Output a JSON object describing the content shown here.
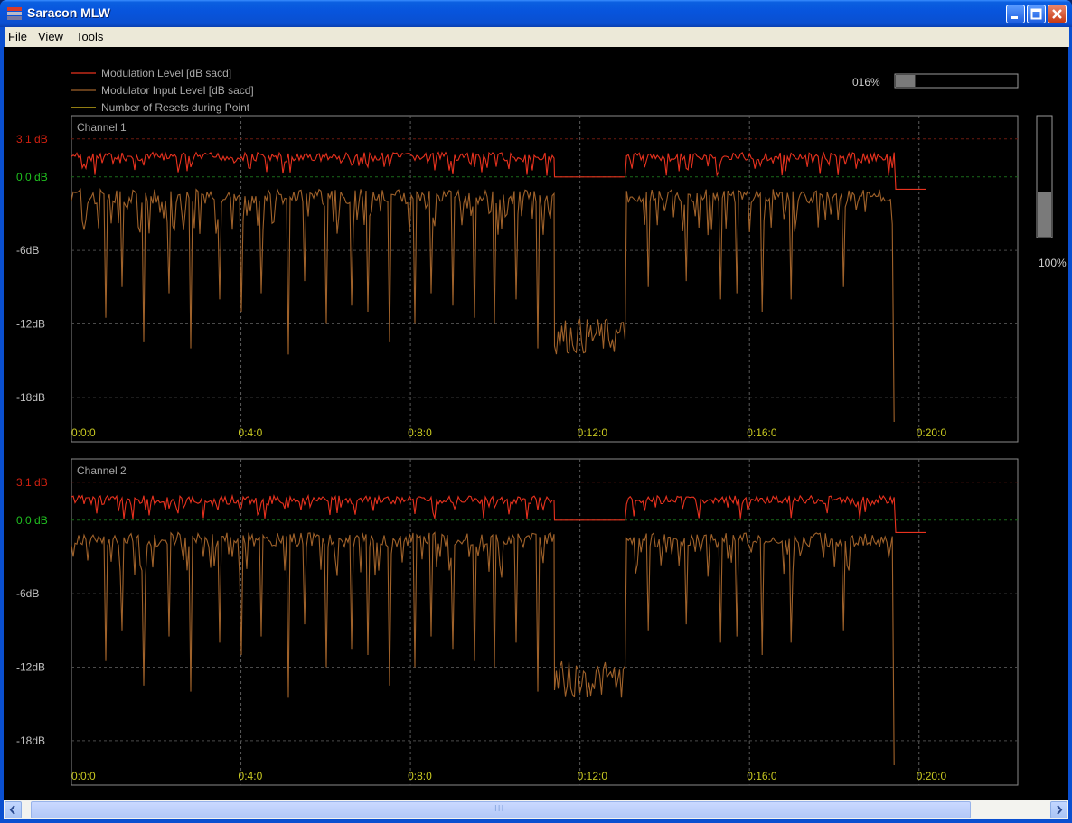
{
  "window": {
    "title": "Saracon MLW"
  },
  "menu": {
    "items": [
      "File",
      "View",
      "Tools"
    ]
  },
  "legend": [
    {
      "label": "Modulation Level [dB sacd]",
      "color": "#e8321e"
    },
    {
      "label": "Modulator Input Level [dB sacd]",
      "color": "#a0622a"
    },
    {
      "label": "Number of Resets during Point",
      "color": "#e8c81e"
    }
  ],
  "progress": {
    "label": "016%",
    "value": 0.16
  },
  "level_meter": {
    "label": "100%",
    "value": 0.37
  },
  "scrollbar": {
    "grip": "III"
  },
  "chart_data": [
    {
      "type": "line",
      "title": "Channel 1",
      "ylim": [
        -20,
        5
      ],
      "xlim_minutes": [
        0,
        22.33
      ],
      "y_ticks": [
        {
          "value": 3.1,
          "label": "3.1 dB",
          "color": "#d02010"
        },
        {
          "value": 0,
          "label": "0.0 dB",
          "color": "#20c020"
        },
        {
          "value": -6,
          "label": "-6dB",
          "color": "#c0c0c0"
        },
        {
          "value": -12,
          "label": "-12dB",
          "color": "#c0c0c0"
        },
        {
          "value": -18,
          "label": "-18dB",
          "color": "#c0c0c0"
        }
      ],
      "x_ticks": [
        {
          "value": 0,
          "label": "0:0:0"
        },
        {
          "value": 4,
          "label": "0:4:0"
        },
        {
          "value": 8,
          "label": "0:8:0"
        },
        {
          "value": 12,
          "label": "0:12:0"
        },
        {
          "value": 16,
          "label": "0:16:0"
        },
        {
          "value": 20,
          "label": "0:20:0"
        }
      ],
      "series": [
        {
          "name": "Modulation Level [dB sacd]",
          "color": "#e8321e",
          "segments": [
            {
              "x0": 0,
              "x1": 11.4,
              "level": 2.0
            },
            {
              "x0": 11.4,
              "x1": 13.1,
              "level": 0.0
            },
            {
              "x0": 13.1,
              "x1": 19.45,
              "level": 2.0
            },
            {
              "x0": 19.45,
              "x1": 20.2,
              "level": -1.0
            }
          ]
        },
        {
          "name": "Modulator Input Level [dB sacd]",
          "color": "#a0622a",
          "segments": [
            {
              "x0": 0,
              "x1": 11.4,
              "level": -1.0
            },
            {
              "x0": 11.4,
              "x1": 13.1,
              "level": -13.0
            },
            {
              "x0": 13.1,
              "x1": 19.45,
              "level": -1.0
            }
          ],
          "dips": [
            [
              0.8,
              -11.5
            ],
            [
              1.2,
              -9
            ],
            [
              1.7,
              -13.5
            ],
            [
              2.3,
              -9.5
            ],
            [
              2.8,
              -14
            ],
            [
              3.5,
              -10
            ],
            [
              4.0,
              -11
            ],
            [
              4.5,
              -9.5
            ],
            [
              5.1,
              -14.5
            ],
            [
              5.5,
              -8.5
            ],
            [
              6.0,
              -12
            ],
            [
              6.6,
              -10.5
            ],
            [
              7.0,
              -11
            ],
            [
              7.5,
              -13.5
            ],
            [
              8.1,
              -12
            ],
            [
              8.5,
              -9.5
            ],
            [
              9.0,
              -10.5
            ],
            [
              9.5,
              -11.5
            ],
            [
              10.0,
              -12
            ],
            [
              10.5,
              -10
            ],
            [
              11.0,
              -14
            ],
            [
              13.6,
              -9
            ],
            [
              14.5,
              -8.5
            ],
            [
              15.3,
              -10
            ],
            [
              15.7,
              -9.5
            ],
            [
              16.3,
              -11
            ],
            [
              17.0,
              -10
            ],
            [
              18.2,
              -9
            ],
            [
              19.45,
              -20
            ]
          ]
        }
      ]
    },
    {
      "type": "line",
      "title": "Channel 2",
      "ylim": [
        -20,
        5
      ],
      "xlim_minutes": [
        0,
        22.33
      ],
      "y_ticks": [
        {
          "value": 3.1,
          "label": "3.1 dB",
          "color": "#d02010"
        },
        {
          "value": 0,
          "label": "0.0 dB",
          "color": "#20c020"
        },
        {
          "value": -6,
          "label": "-6dB",
          "color": "#c0c0c0"
        },
        {
          "value": -12,
          "label": "-12dB",
          "color": "#c0c0c0"
        },
        {
          "value": -18,
          "label": "-18dB",
          "color": "#c0c0c0"
        }
      ],
      "x_ticks": [
        {
          "value": 0,
          "label": "0:0:0"
        },
        {
          "value": 4,
          "label": "0:4:0"
        },
        {
          "value": 8,
          "label": "0:8:0"
        },
        {
          "value": 12,
          "label": "0:12:0"
        },
        {
          "value": 16,
          "label": "0:16:0"
        },
        {
          "value": 20,
          "label": "0:20:0"
        }
      ],
      "series": [
        {
          "name": "Modulation Level [dB sacd]",
          "color": "#e8321e",
          "segments": [
            {
              "x0": 0,
              "x1": 11.4,
              "level": 2.0
            },
            {
              "x0": 11.4,
              "x1": 13.1,
              "level": 0.0
            },
            {
              "x0": 13.1,
              "x1": 19.45,
              "level": 2.0
            },
            {
              "x0": 19.45,
              "x1": 20.2,
              "level": -1.0
            }
          ]
        },
        {
          "name": "Modulator Input Level [dB sacd]",
          "color": "#a0622a",
          "segments": [
            {
              "x0": 0,
              "x1": 11.4,
              "level": -1.0
            },
            {
              "x0": 11.4,
              "x1": 13.1,
              "level": -13.0
            },
            {
              "x0": 13.1,
              "x1": 19.45,
              "level": -1.0
            }
          ],
          "dips": [
            [
              0.8,
              -11.5
            ],
            [
              1.2,
              -9
            ],
            [
              1.7,
              -13.5
            ],
            [
              2.3,
              -9.5
            ],
            [
              2.8,
              -14
            ],
            [
              3.5,
              -10
            ],
            [
              4.0,
              -11
            ],
            [
              4.5,
              -9.5
            ],
            [
              5.1,
              -14.5
            ],
            [
              5.5,
              -8.5
            ],
            [
              6.0,
              -12
            ],
            [
              6.6,
              -10.5
            ],
            [
              7.0,
              -11
            ],
            [
              7.5,
              -13.5
            ],
            [
              8.1,
              -12
            ],
            [
              8.5,
              -9.5
            ],
            [
              9.0,
              -10.5
            ],
            [
              9.5,
              -11.5
            ],
            [
              10.0,
              -12
            ],
            [
              10.5,
              -10
            ],
            [
              11.0,
              -14
            ],
            [
              13.6,
              -9
            ],
            [
              14.5,
              -8.5
            ],
            [
              15.3,
              -10
            ],
            [
              15.7,
              -9.5
            ],
            [
              16.3,
              -11
            ],
            [
              17.0,
              -10
            ],
            [
              18.2,
              -9
            ],
            [
              19.45,
              -20
            ]
          ]
        }
      ]
    }
  ]
}
